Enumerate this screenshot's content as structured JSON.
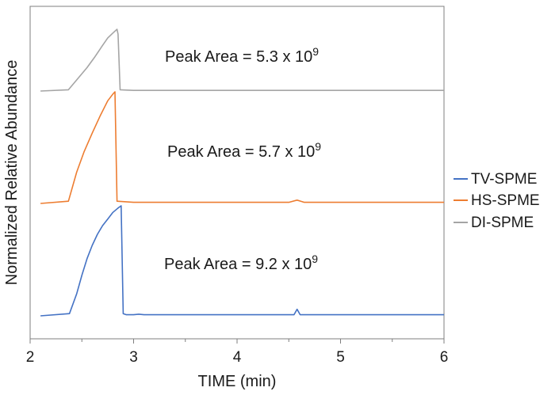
{
  "chart_data": {
    "type": "line",
    "title": "",
    "xlabel": "TIME (min)",
    "ylabel": "Normalized Relative Abundance",
    "xlim": [
      2,
      6
    ],
    "x_ticks": [
      "2",
      "3",
      "4",
      "5",
      "6"
    ],
    "grid": false,
    "legend_position": "right",
    "series": [
      {
        "name": "TV-SPME",
        "color": "#4472C4",
        "offset": 0,
        "x": [
          2.1,
          2.38,
          2.45,
          2.5,
          2.55,
          2.6,
          2.65,
          2.7,
          2.75,
          2.8,
          2.85,
          2.88,
          2.9,
          2.93,
          3.0,
          3.05,
          3.1,
          3.5,
          4.0,
          4.55,
          4.58,
          4.61,
          5.0,
          5.5,
          6.0
        ],
        "y": [
          0.0,
          0.02,
          0.2,
          0.37,
          0.52,
          0.64,
          0.74,
          0.82,
          0.88,
          0.94,
          0.98,
          1.0,
          0.02,
          0.01,
          0.01,
          0.015,
          0.01,
          0.01,
          0.01,
          0.01,
          0.06,
          0.01,
          0.01,
          0.01,
          0.01
        ]
      },
      {
        "name": "HS-SPME",
        "color": "#ED7D31",
        "offset": 1,
        "x": [
          2.1,
          2.37,
          2.45,
          2.52,
          2.6,
          2.68,
          2.75,
          2.8,
          2.82,
          2.84,
          3.0,
          3.5,
          4.0,
          4.5,
          4.58,
          4.65,
          5.0,
          5.5,
          6.0
        ],
        "y": [
          0.0,
          0.02,
          0.28,
          0.46,
          0.63,
          0.79,
          0.92,
          0.98,
          1.0,
          0.02,
          0.01,
          0.01,
          0.01,
          0.01,
          0.03,
          0.01,
          0.01,
          0.01,
          0.01
        ]
      },
      {
        "name": "DI-SPME",
        "color": "#A5A5A5",
        "offset": 2,
        "x": [
          2.1,
          2.37,
          2.45,
          2.55,
          2.62,
          2.7,
          2.75,
          2.8,
          2.84,
          2.85,
          2.87,
          3.0,
          3.4,
          4.0,
          4.5,
          5.0,
          5.5,
          6.0
        ],
        "y": [
          0.0,
          0.02,
          0.18,
          0.38,
          0.54,
          0.74,
          0.86,
          0.94,
          1.0,
          0.92,
          0.02,
          0.01,
          0.01,
          0.01,
          0.01,
          0.01,
          0.01,
          0.01
        ]
      }
    ],
    "annotations": [
      {
        "series": "DI-SPME",
        "text": "Peak Area = 5.3 x 10",
        "exponent": "9",
        "x": 3.3,
        "row_pos": 0.55
      },
      {
        "series": "HS-SPME",
        "text": "Peak Area = 5.7 x 10",
        "exponent": "9",
        "x": 3.3,
        "row_pos": 0.55
      },
      {
        "series": "TV-SPME",
        "text": "Peak Area = 9.2 x 10",
        "exponent": "9",
        "x": 3.3,
        "row_pos": 0.55
      }
    ],
    "legend_order": [
      "TV-SPME",
      "HS-SPME",
      "DI-SPME"
    ]
  }
}
